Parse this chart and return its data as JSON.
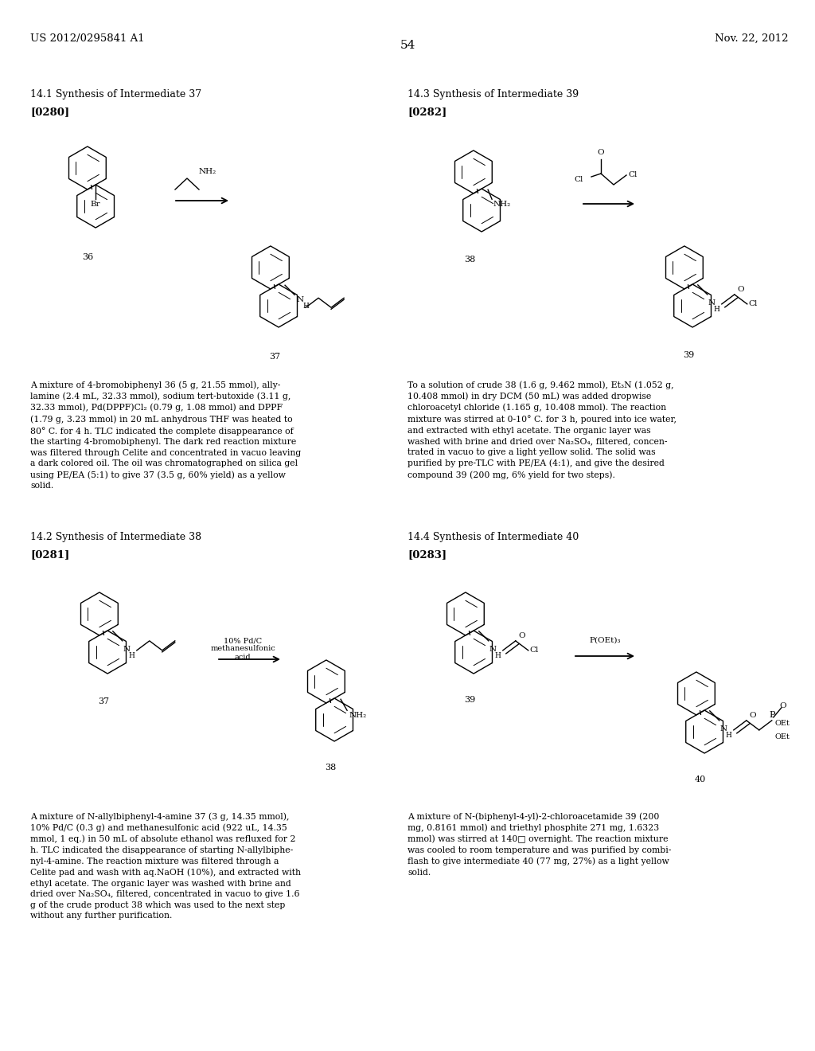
{
  "page_background": "#ffffff",
  "header_left": "US 2012/0295841 A1",
  "header_right": "Nov. 22, 2012",
  "page_number": "54",
  "paragraph_left_1": "A mixture of 4-bromobiphenyl 36 (5 g, 21.55 mmol), ally-\nlamine (2.4 mL, 32.33 mmol), sodium tert-butoxide (3.11 g,\n32.33 mmol), Pd(DPPF)Cl₂ (0.79 g, 1.08 mmol) and DPPF\n(1.79 g, 3.23 mmol) in 20 mL anhydrous THF was heated to\n80° C. for 4 h. TLC indicated the complete disappearance of\nthe starting 4-bromobiphenyl. The dark red reaction mixture\nwas filtered through Celite and concentrated in vacuo leaving\na dark colored oil. The oil was chromatographed on silica gel\nusing PE/EA (5:1) to give 37 (3.5 g, 60% yield) as a yellow\nsolid.",
  "paragraph_right_1": "To a solution of crude 38 (1.6 g, 9.462 mmol), Et₃N (1.052 g,\n10.408 mmol) in dry DCM (50 mL) was added dropwise\nchloroacetyl chloride (1.165 g, 10.408 mmol). The reaction\nmixture was stirred at 0-10° C. for 3 h, poured into ice water,\nand extracted with ethyl acetate. The organic layer was\nwashed with brine and dried over Na₂SO₄, filtered, concen-\ntrated in vacuo to give a light yellow solid. The solid was\npurified by pre-TLC with PE/EA (4:1), and give the desired\ncompound 39 (200 mg, 6% yield for two steps).",
  "paragraph_left_2": "A mixture of N-allylbiphenyl-4-amine 37 (3 g, 14.35 mmol),\n10% Pd/C (0.3 g) and methanesulfonic acid (922 uL, 14.35\nmmol, 1 eq.) in 50 mL of absolute ethanol was refluxed for 2\nh. TLC indicated the disappearance of starting N-allylbiphe-\nnyl-4-amine. The reaction mixture was filtered through a\nCelite pad and wash with aq.NaOH (10%), and extracted with\nethyl acetate. The organic layer was washed with brine and\ndried over Na₂SO₄, filtered, concentrated in vacuo to give 1.6\ng of the crude product 38 which was used to the next step\nwithout any further purification.",
  "paragraph_right_2": "A mixture of N-(biphenyl-4-yl)-2-chloroacetamide 39 (200\nmg, 0.8161 mmol) and triethyl phosphite 271 mg, 1.6323\nmmol) was stirred at 140□ overnight. The reaction mixture\nwas cooled to room temperature and was purified by combi-\nflash to give intermediate 40 (77 mg, 27%) as a light yellow\nsolid.",
  "font_size_body": 7.8,
  "font_size_header": 9.5,
  "font_size_section": 9.0,
  "font_size_tag": 9.5,
  "font_size_page_num": 11
}
